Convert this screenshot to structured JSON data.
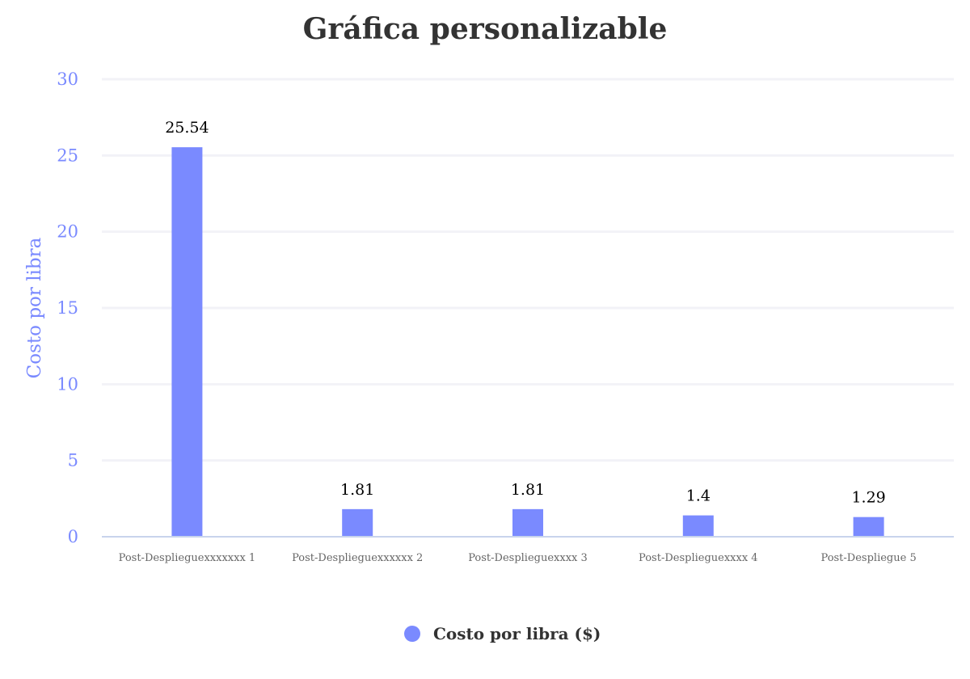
{
  "chart_data": {
    "type": "bar",
    "title": "Gráfica personalizable",
    "ylabel": "Costo por libra",
    "xlabel": "",
    "categories": [
      "Post-Desplieguexxxxxxx 1",
      "Post-Desplieguexxxxxx 2",
      "Post-Desplieguexxxx 3",
      "Post-Desplieguexxxx 4",
      "Post-Despliegue 5"
    ],
    "series": [
      {
        "name": "Costo por libra ($)",
        "values": [
          25.54,
          1.81,
          1.81,
          1.4,
          1.29
        ],
        "data_labels": [
          "25.54",
          "1.81",
          "1.81",
          "1.4",
          "1.29"
        ],
        "color": "#7a8aff"
      }
    ],
    "ylim": [
      0,
      30
    ],
    "yticks": [
      0,
      5,
      10,
      15,
      20,
      25,
      30
    ],
    "grid": true,
    "legend_position": "bottom-center",
    "colors": {
      "bar": "#7a8aff",
      "axis_text": "#7a8aff",
      "gridline": "#f2f2f7",
      "baseline": "#c8d4ec"
    }
  }
}
